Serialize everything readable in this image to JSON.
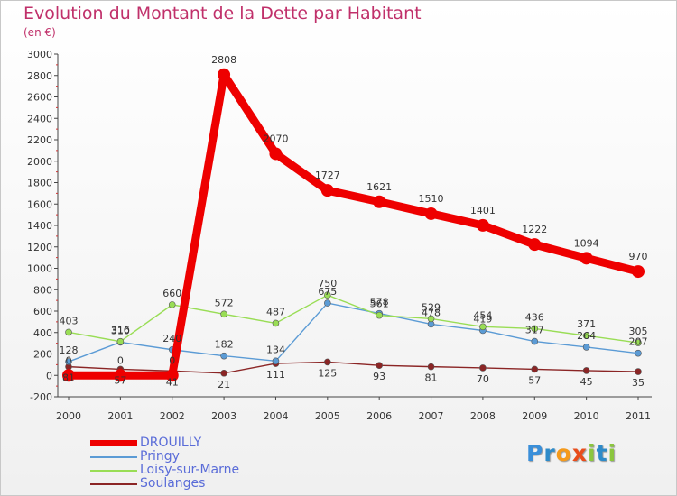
{
  "header": {
    "title": "Evolution du Montant de la Dette par Habitant",
    "subtitle": "(en €)"
  },
  "chart_data": {
    "type": "line",
    "title": "Evolution du Montant de la Dette par Habitant",
    "ylabel": "(en €)",
    "xlabel": "",
    "ylim": [
      -200,
      3000
    ],
    "ytick_step": 200,
    "grid": false,
    "legend": "bottom-left",
    "categories": [
      "2000",
      "2001",
      "2002",
      "2003",
      "2004",
      "2005",
      "2006",
      "2007",
      "2008",
      "2009",
      "2010",
      "2011"
    ],
    "series": [
      {
        "name": "DROUILLY",
        "color": "#ee0000",
        "labels": [
          "0",
          "0",
          "0",
          "2808",
          "2070",
          "1727",
          "1621",
          "1510",
          "1401",
          "1222",
          "1094",
          "970"
        ],
        "values": [
          0,
          0,
          0,
          2808,
          2070,
          1727,
          1621,
          1510,
          1401,
          1222,
          1094,
          970
        ]
      },
      {
        "name": "Pringy",
        "color": "#5b9bd5",
        "labels": [
          "128",
          "310",
          "240",
          "182",
          "134",
          "675",
          "578",
          "478",
          "419",
          "317",
          "264",
          "207"
        ],
        "values": [
          128,
          310,
          240,
          182,
          134,
          675,
          578,
          478,
          419,
          317,
          264,
          207
        ]
      },
      {
        "name": "Loisy-sur-Marne",
        "color": "#99dd55",
        "labels": [
          "403",
          "316",
          "660",
          "572",
          "487",
          "750",
          "561",
          "529",
          "454",
          "436",
          "371",
          "305"
        ],
        "values": [
          403,
          316,
          660,
          572,
          487,
          750,
          561,
          529,
          454,
          436,
          371,
          305
        ]
      },
      {
        "name": "Soulanges",
        "color": "#8b2525",
        "labels": [
          "81",
          "57",
          "41",
          "21",
          "111",
          "125",
          "93",
          "81",
          "70",
          "57",
          "45",
          "35"
        ],
        "values": [
          81,
          57,
          41,
          21,
          111,
          125,
          93,
          81,
          70,
          57,
          45,
          35
        ]
      }
    ]
  },
  "legend_items": [
    "DROUILLY",
    "Pringy",
    "Loisy-sur-Marne",
    "Soulanges"
  ],
  "brand": {
    "letters": [
      "P",
      "r",
      "o",
      "x",
      "i",
      "t",
      "i"
    ],
    "colors": [
      "#3a8fd9",
      "#2e8bc9",
      "#f59a1b",
      "#e84d1c",
      "#8bc63e",
      "#2e8bc9",
      "#8bc63e"
    ]
  }
}
